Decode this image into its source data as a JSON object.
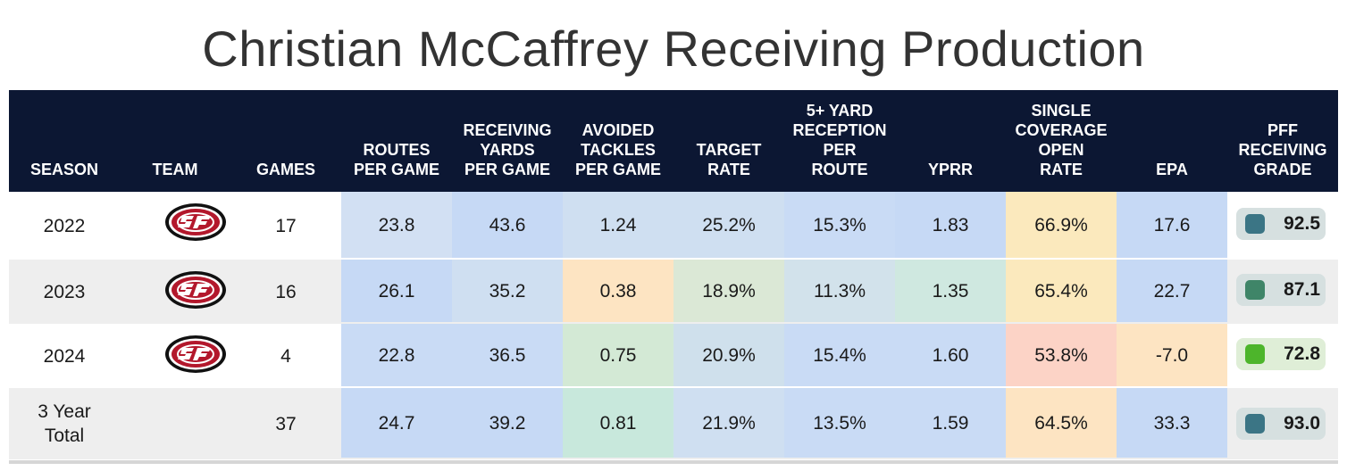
{
  "title": "Christian McCaffrey Receiving Production",
  "colors": {
    "header_bg": "#0c1733",
    "row_alt": "#eeeeee",
    "grade_high": "#3b7585",
    "grade_mid": "#3f8568",
    "grade_low": "#4db52b"
  },
  "columns": [
    "SEASON",
    "TEAM",
    "GAMES",
    "ROUTES\nPER GAME",
    "RECEIVING\nYARDS\nPER GAME",
    "AVOIDED\nTACKLES\nPER GAME",
    "TARGET\nRATE",
    "5+ YARD\nRECEPTION\nPER\nROUTE",
    "YPRR",
    "SINGLE\nCOVERAGE\nOPEN\nRATE",
    "EPA",
    "PFF\nRECEIVING\nGRADE"
  ],
  "team_logo": "sf-49ers-logo",
  "chart_data": {
    "type": "table",
    "title": "Christian McCaffrey Receiving Production",
    "rows": [
      {
        "season": "2022",
        "team_logo": true,
        "games": "17",
        "routes_pg": "23.8",
        "rec_yards_pg": "43.6",
        "avoided_tackles_pg": "1.24",
        "target_rate": "25.2%",
        "five_plus_per_route": "15.3%",
        "yprr": "1.83",
        "single_cov_open_rate": "66.9%",
        "epa": "17.6",
        "pff_grade": "92.5",
        "grade_color": "#3b7585"
      },
      {
        "season": "2023",
        "team_logo": true,
        "games": "16",
        "routes_pg": "26.1",
        "rec_yards_pg": "35.2",
        "avoided_tackles_pg": "0.38",
        "target_rate": "18.9%",
        "five_plus_per_route": "11.3%",
        "yprr": "1.35",
        "single_cov_open_rate": "65.4%",
        "epa": "22.7",
        "pff_grade": "87.1",
        "grade_color": "#3f8568"
      },
      {
        "season": "2024",
        "team_logo": true,
        "games": "4",
        "routes_pg": "22.8",
        "rec_yards_pg": "36.5",
        "avoided_tackles_pg": "0.75",
        "target_rate": "20.9%",
        "five_plus_per_route": "15.4%",
        "yprr": "1.60",
        "single_cov_open_rate": "53.8%",
        "epa": "-7.0",
        "pff_grade": "72.8",
        "grade_color": "#4db52b"
      },
      {
        "season": "3 Year\nTotal",
        "team_logo": false,
        "games": "37",
        "routes_pg": "24.7",
        "rec_yards_pg": "39.2",
        "avoided_tackles_pg": "0.81",
        "target_rate": "21.9%",
        "five_plus_per_route": "13.5%",
        "yprr": "1.59",
        "single_cov_open_rate": "64.5%",
        "epa": "33.3",
        "pff_grade": "93.0",
        "grade_color": "#3b7585"
      }
    ],
    "cell_colors": [
      [
        "#d2e0f3",
        "#c6d9f5",
        "#cfdff1",
        "#cfdff1",
        "#c9dbf5",
        "#c6d9f5",
        "#fbe9bd",
        "#c6d9f5"
      ],
      [
        "#c6d9f5",
        "#cfdff1",
        "#fde4c2",
        "#dbe8d6",
        "#d2e2eb",
        "#cfe8e0",
        "#fbe9bd",
        "#c6d9f5"
      ],
      [
        "#c9dbf5",
        "#c9dbf5",
        "#d3e9d5",
        "#cfe0ec",
        "#c9dbf5",
        "#c9dbf5",
        "#fcd3c6",
        "#fde4c2"
      ],
      [
        "#c6d9f5",
        "#c6d9f5",
        "#c8e8dc",
        "#cfdff1",
        "#c9dbf5",
        "#c9dbf5",
        "#fde4c2",
        "#c6d9f5"
      ]
    ]
  }
}
